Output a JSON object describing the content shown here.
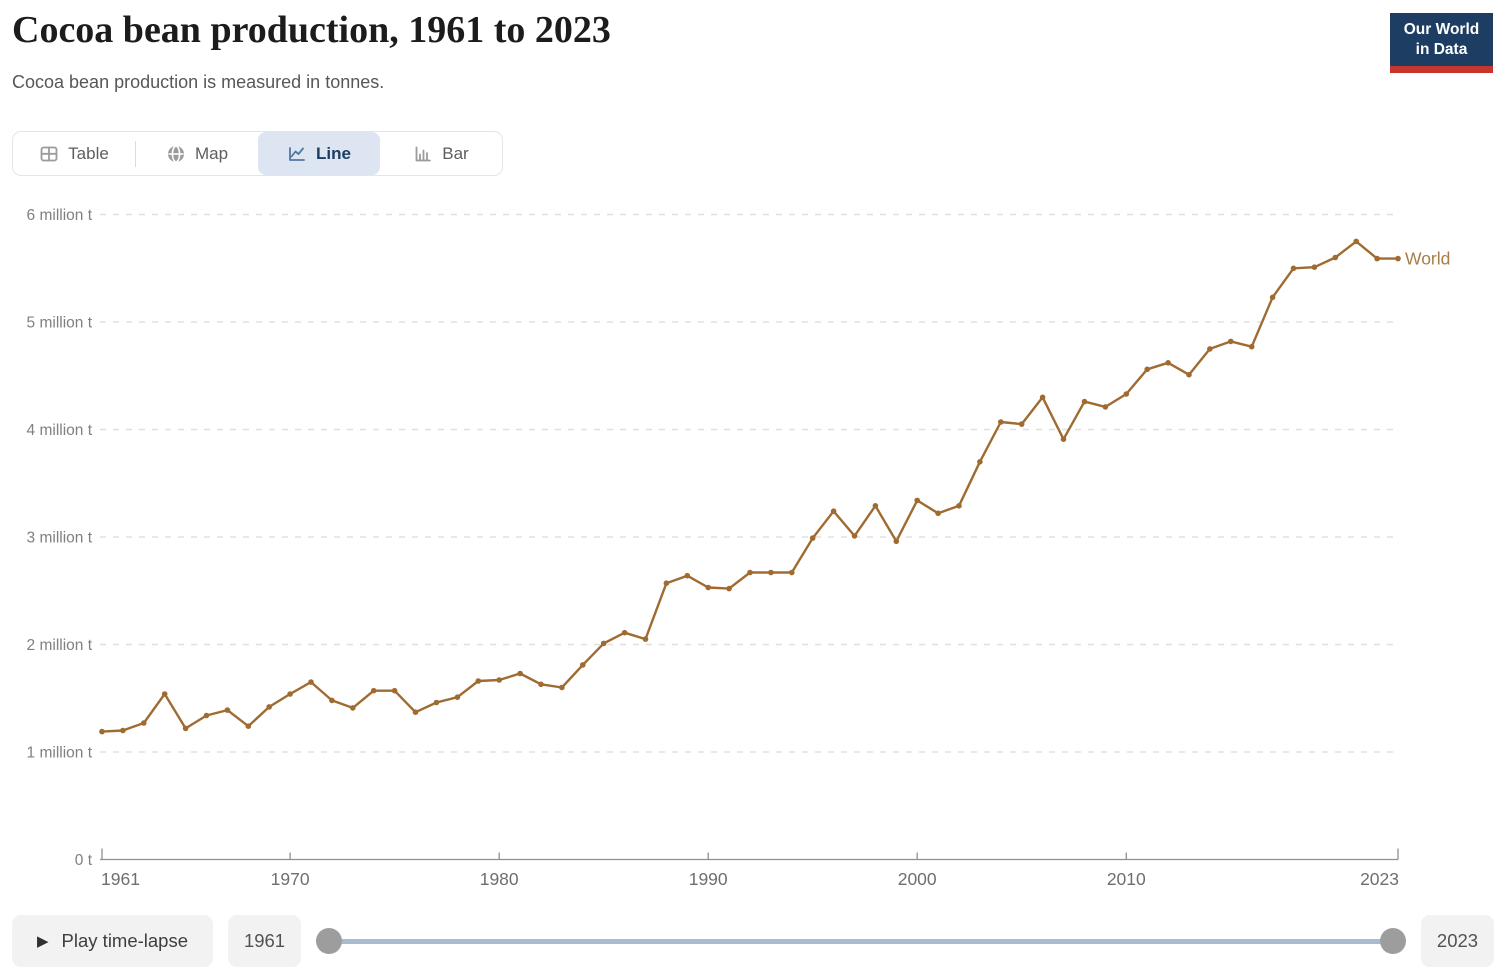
{
  "header": {
    "title": "Cocoa bean production, 1961 to 2023",
    "subtitle": "Cocoa bean production is measured in tonnes.",
    "logo": {
      "line1": "Our World",
      "line2": "in Data",
      "bg_color": "#1d3d63",
      "accent_color": "#c7362c"
    }
  },
  "tabs": {
    "selected_bg": "#dce5f1",
    "selected_text_color": "#1d3d63",
    "items": [
      {
        "label": "Table",
        "icon": "table-icon",
        "selected": false
      },
      {
        "label": "Map",
        "icon": "globe-icon",
        "selected": false
      },
      {
        "label": "Line",
        "icon": "line-chart-icon",
        "selected": true
      },
      {
        "label": "Bar",
        "icon": "bar-chart-icon",
        "selected": false
      }
    ]
  },
  "chart_data": {
    "type": "line",
    "title": "Cocoa bean production, 1961 to 2023",
    "ylabel": "",
    "xlabel": "",
    "unit": "tonnes",
    "values_unit": "million tonnes",
    "grid": "dashed-horizontal",
    "legend_position": "end-of-line-label",
    "xlim": [
      1961,
      2023
    ],
    "ylim": [
      0,
      6
    ],
    "x_ticks": [
      1961,
      1970,
      1980,
      1990,
      2000,
      2010,
      2023
    ],
    "y_ticks": [
      {
        "value": 0,
        "label": "0 t"
      },
      {
        "value": 1,
        "label": "1 million t"
      },
      {
        "value": 2,
        "label": "2 million t"
      },
      {
        "value": 3,
        "label": "3 million t"
      },
      {
        "value": 4,
        "label": "4 million t"
      },
      {
        "value": 5,
        "label": "5 million t"
      },
      {
        "value": 6,
        "label": "6 million t"
      }
    ],
    "colors": {
      "grid": "#e0e0e0",
      "axis": "#8f8f8f",
      "y_tick_text": "#808080",
      "x_tick_text": "#6e6e6e"
    },
    "x": [
      1961,
      1962,
      1963,
      1964,
      1965,
      1966,
      1967,
      1968,
      1969,
      1970,
      1971,
      1972,
      1973,
      1974,
      1975,
      1976,
      1977,
      1978,
      1979,
      1980,
      1981,
      1982,
      1983,
      1984,
      1985,
      1986,
      1987,
      1988,
      1989,
      1990,
      1991,
      1992,
      1993,
      1994,
      1995,
      1996,
      1997,
      1998,
      1999,
      2000,
      2001,
      2002,
      2003,
      2004,
      2005,
      2006,
      2007,
      2008,
      2009,
      2010,
      2011,
      2012,
      2013,
      2014,
      2015,
      2016,
      2017,
      2018,
      2019,
      2020,
      2021,
      2022,
      2023
    ],
    "series": [
      {
        "name": "World",
        "color": "#a06b31",
        "label_color": "#a87c4a",
        "values": [
          1.19,
          1.2,
          1.27,
          1.54,
          1.22,
          1.34,
          1.39,
          1.24,
          1.42,
          1.54,
          1.65,
          1.48,
          1.41,
          1.57,
          1.57,
          1.37,
          1.46,
          1.51,
          1.66,
          1.67,
          1.73,
          1.63,
          1.6,
          1.81,
          2.01,
          2.11,
          2.05,
          2.57,
          2.64,
          2.53,
          2.52,
          2.67,
          2.67,
          2.67,
          2.99,
          3.24,
          3.01,
          3.29,
          2.96,
          3.34,
          3.22,
          3.29,
          3.7,
          4.07,
          4.05,
          4.3,
          3.91,
          4.26,
          4.21,
          4.33,
          4.56,
          4.62,
          4.51,
          4.75,
          4.82,
          4.77,
          5.23,
          5.5,
          5.51,
          5.6,
          5.75,
          5.59,
          5.59
        ]
      }
    ]
  },
  "timeline": {
    "play_label": "Play time-lapse",
    "play_icon": "play-icon",
    "start_year": "1961",
    "end_year": "2023",
    "track_color": "#a9bccf",
    "handle_color": "#9d9d9d"
  }
}
